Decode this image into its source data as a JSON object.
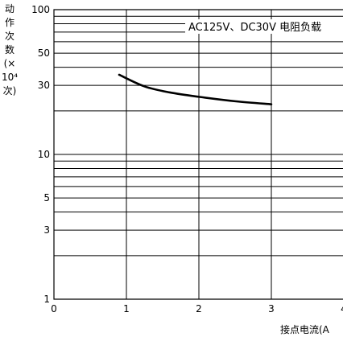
{
  "chart_data": {
    "type": "line",
    "title": "",
    "xlabel": "接点电流(A",
    "ylabel_lines": [
      "动",
      "作",
      "次",
      "数",
      "(×",
      "10⁴",
      "次)"
    ],
    "x_scale": "linear",
    "y_scale": "log",
    "xlim": [
      0,
      4
    ],
    "ylim": [
      1,
      100
    ],
    "x_ticks": [
      "0",
      "1",
      "2",
      "3",
      "4"
    ],
    "y_ticks": [
      "1",
      "3",
      "5",
      "10",
      "30",
      "50",
      "100"
    ],
    "grid": true,
    "series": [
      {
        "name": "AC125V、DC30V 电阻负载",
        "x": [
          0.9,
          1.25,
          1.6,
          2.0,
          2.5,
          3.0
        ],
        "y": [
          35.5,
          29.5,
          26.8,
          25.0,
          23.3,
          22.2
        ]
      }
    ]
  }
}
